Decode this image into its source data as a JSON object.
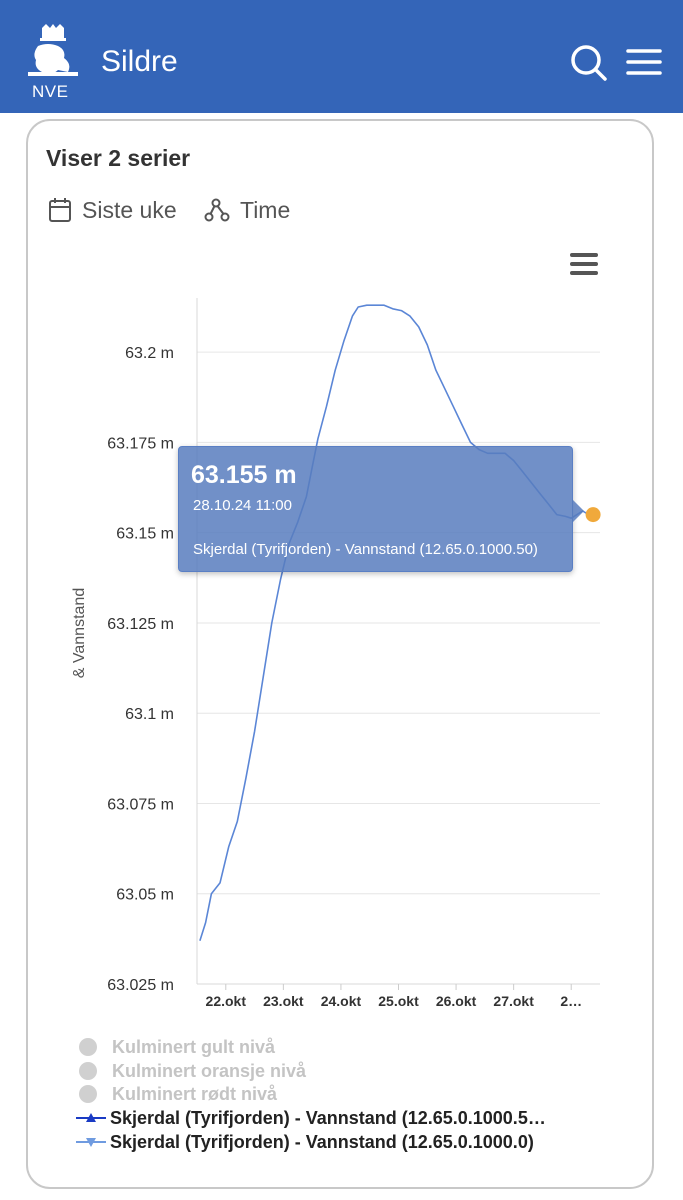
{
  "header": {
    "logo_text": "NVE",
    "title": "Sildre"
  },
  "card": {
    "title": "Viser 2 serier",
    "period_label": "Siste uke",
    "resolution_label": "Time"
  },
  "tooltip": {
    "value": "63.155 m",
    "date": "28.10.24 11:00",
    "series": "Skjerdal (Tyrifjorden) - Vannstand (12.65.0.1000.50)"
  },
  "legend": {
    "items": [
      {
        "label": "Kulminert gult nivå"
      },
      {
        "label": "Kulminert oransje nivå"
      },
      {
        "label": "Kulminert rødt nivå"
      },
      {
        "label": "Skjerdal (Tyrifjorden) - Vannstand (12.65.0.1000.5…",
        "color": "#1a3bc4"
      },
      {
        "label": "Skjerdal (Tyrifjorden) - Vannstand (12.65.0.1000.0)",
        "color": "#6f9be0"
      }
    ]
  },
  "chart_data": {
    "type": "line",
    "ylabel": "& Vannstand",
    "ylim": [
      63.025,
      63.215
    ],
    "yticks": [
      "63.025 m",
      "63.05 m",
      "63.075 m",
      "63.1 m",
      "63.125 m",
      "63.15 m",
      "63.175 m",
      "63.2 m"
    ],
    "ytick_values": [
      63.025,
      63.05,
      63.075,
      63.1,
      63.125,
      63.15,
      63.175,
      63.2
    ],
    "xlim": [
      21.5,
      28.5
    ],
    "xticks": [
      "22.okt",
      "23.okt",
      "24.okt",
      "25.okt",
      "26.okt",
      "27.okt",
      "2…"
    ],
    "xtick_values": [
      22,
      23,
      24,
      25,
      26,
      27,
      28
    ],
    "line_color": "#5b86d6",
    "highlight_color": "#f0a93b",
    "grid": true,
    "series": [
      {
        "x": [
          21.55,
          21.65,
          21.75,
          21.9,
          22.05,
          22.2,
          22.35,
          22.5,
          22.65,
          22.8,
          22.95,
          23.1,
          23.25,
          23.4,
          23.5,
          23.6,
          23.75,
          23.9,
          24.05,
          24.2,
          24.3,
          24.45,
          24.6,
          24.75,
          24.9,
          25.05,
          25.2,
          25.35,
          25.5,
          25.65,
          25.8,
          25.95,
          26.1,
          26.25,
          26.4,
          26.55,
          26.7,
          26.85,
          27.0,
          27.15,
          27.3,
          27.45,
          27.6,
          27.75,
          27.9,
          28.0,
          28.1,
          28.2,
          28.3,
          28.38
        ],
        "y": [
          63.037,
          63.042,
          63.05,
          63.053,
          63.063,
          63.07,
          63.082,
          63.095,
          63.11,
          63.125,
          63.137,
          63.147,
          63.153,
          63.16,
          63.168,
          63.176,
          63.185,
          63.195,
          63.203,
          63.21,
          63.2125,
          63.213,
          63.213,
          63.213,
          63.212,
          63.2115,
          63.21,
          63.207,
          63.202,
          63.195,
          63.19,
          63.185,
          63.18,
          63.175,
          63.173,
          63.172,
          63.172,
          63.172,
          63.17,
          63.167,
          63.164,
          63.161,
          63.158,
          63.155,
          63.1545,
          63.154,
          63.155,
          63.156,
          63.155,
          63.155
        ]
      }
    ],
    "highlight_point": {
      "x": 28.38,
      "y": 63.155
    }
  }
}
